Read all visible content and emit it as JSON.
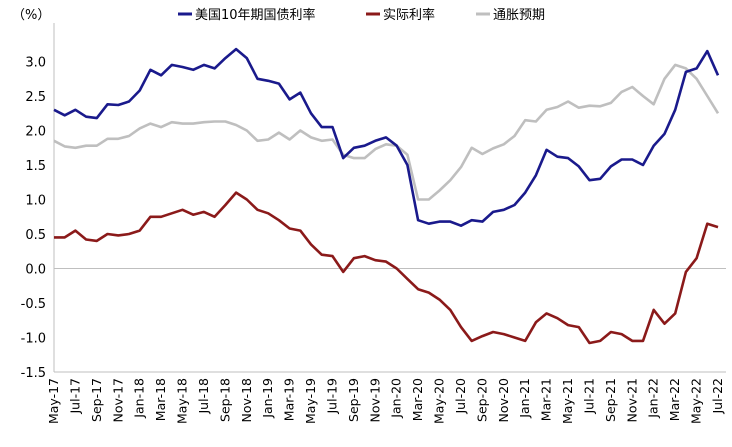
{
  "chart_data": {
    "type": "line",
    "unit_label": "（%）",
    "ylim": [
      -1.5,
      3.5
    ],
    "yticks": [
      -1.5,
      -1.0,
      -0.5,
      0.0,
      0.5,
      1.0,
      1.5,
      2.0,
      2.5,
      3.0
    ],
    "ytick_labels": [
      "-1.5",
      "-1.0",
      "-0.5",
      "0.0",
      "0.5",
      "1.0",
      "1.5",
      "2.0",
      "2.5",
      "3.0"
    ],
    "xrange": [
      "2017-05",
      "2022-07"
    ],
    "xticks": [
      "May-17",
      "Jul-17",
      "Sep-17",
      "Nov-17",
      "Jan-18",
      "Mar-18",
      "May-18",
      "Jul-18",
      "Sep-18",
      "Nov-18",
      "Jan-19",
      "Mar-19",
      "May-19",
      "Jul-19",
      "Sep-19",
      "Nov-19",
      "Jan-20",
      "Mar-20",
      "May-20",
      "Jul-20",
      "Sep-20",
      "Nov-20",
      "Jan-21",
      "Mar-21",
      "May-21",
      "Jul-21",
      "Sep-21",
      "Nov-21",
      "Jan-22",
      "Mar-22",
      "May-22",
      "Jul-22"
    ],
    "x": [
      "2017-05",
      "2017-06",
      "2017-07",
      "2017-08",
      "2017-09",
      "2017-10",
      "2017-11",
      "2017-12",
      "2018-01",
      "2018-02",
      "2018-03",
      "2018-04",
      "2018-05",
      "2018-06",
      "2018-07",
      "2018-08",
      "2018-09",
      "2018-10",
      "2018-11",
      "2018-12",
      "2019-01",
      "2019-02",
      "2019-03",
      "2019-04",
      "2019-05",
      "2019-06",
      "2019-07",
      "2019-08",
      "2019-09",
      "2019-10",
      "2019-11",
      "2019-12",
      "2020-01",
      "2020-02",
      "2020-03",
      "2020-04",
      "2020-05",
      "2020-06",
      "2020-07",
      "2020-08",
      "2020-09",
      "2020-10",
      "2020-11",
      "2020-12",
      "2021-01",
      "2021-02",
      "2021-03",
      "2021-04",
      "2021-05",
      "2021-06",
      "2021-07",
      "2021-08",
      "2021-09",
      "2021-10",
      "2021-11",
      "2021-12",
      "2022-01",
      "2022-02",
      "2022-03",
      "2022-04",
      "2022-05",
      "2022-06",
      "2022-07"
    ],
    "series": [
      {
        "name": "美国10年期国债利率",
        "color": "#1a1a8c",
        "values": [
          2.3,
          2.22,
          2.3,
          2.2,
          2.18,
          2.38,
          2.37,
          2.42,
          2.58,
          2.88,
          2.8,
          2.95,
          2.92,
          2.88,
          2.95,
          2.9,
          3.05,
          3.18,
          3.05,
          2.75,
          2.72,
          2.68,
          2.45,
          2.55,
          2.25,
          2.05,
          2.05,
          1.6,
          1.75,
          1.78,
          1.85,
          1.9,
          1.78,
          1.5,
          0.7,
          0.65,
          0.68,
          0.68,
          0.62,
          0.7,
          0.68,
          0.82,
          0.85,
          0.92,
          1.1,
          1.35,
          1.72,
          1.62,
          1.6,
          1.48,
          1.28,
          1.3,
          1.48,
          1.58,
          1.58,
          1.5,
          1.78,
          1.95,
          2.3,
          2.85,
          2.9,
          3.15,
          2.8
        ]
      },
      {
        "name": "实际利率",
        "color": "#8b1a1a",
        "values": [
          0.45,
          0.45,
          0.55,
          0.42,
          0.4,
          0.5,
          0.48,
          0.5,
          0.55,
          0.75,
          0.75,
          0.8,
          0.85,
          0.78,
          0.82,
          0.75,
          0.92,
          1.1,
          1.0,
          0.85,
          0.8,
          0.7,
          0.58,
          0.55,
          0.35,
          0.2,
          0.18,
          -0.05,
          0.15,
          0.18,
          0.12,
          0.1,
          0.0,
          -0.15,
          -0.3,
          -0.35,
          -0.45,
          -0.6,
          -0.85,
          -1.05,
          -0.98,
          -0.92,
          -0.95,
          -1.0,
          -1.05,
          -0.78,
          -0.65,
          -0.72,
          -0.82,
          -0.85,
          -1.08,
          -1.05,
          -0.92,
          -0.95,
          -1.05,
          -1.05,
          -0.6,
          -0.8,
          -0.65,
          -0.05,
          0.15,
          0.65,
          0.6
        ]
      },
      {
        "name": "通胀预期",
        "color": "#bfbfbf",
        "values": [
          1.85,
          1.77,
          1.75,
          1.78,
          1.78,
          1.88,
          1.88,
          1.92,
          2.03,
          2.1,
          2.05,
          2.12,
          2.1,
          2.1,
          2.12,
          2.13,
          2.13,
          2.08,
          2.0,
          1.85,
          1.87,
          1.97,
          1.87,
          2.0,
          1.9,
          1.85,
          1.87,
          1.65,
          1.6,
          1.6,
          1.73,
          1.8,
          1.78,
          1.65,
          1.0,
          1.0,
          1.13,
          1.28,
          1.47,
          1.75,
          1.66,
          1.74,
          1.8,
          1.92,
          2.15,
          2.13,
          2.3,
          2.34,
          2.42,
          2.33,
          2.36,
          2.35,
          2.4,
          2.56,
          2.63,
          2.5,
          2.38,
          2.75,
          2.95,
          2.9,
          2.75,
          2.5,
          2.25
        ]
      }
    ]
  }
}
